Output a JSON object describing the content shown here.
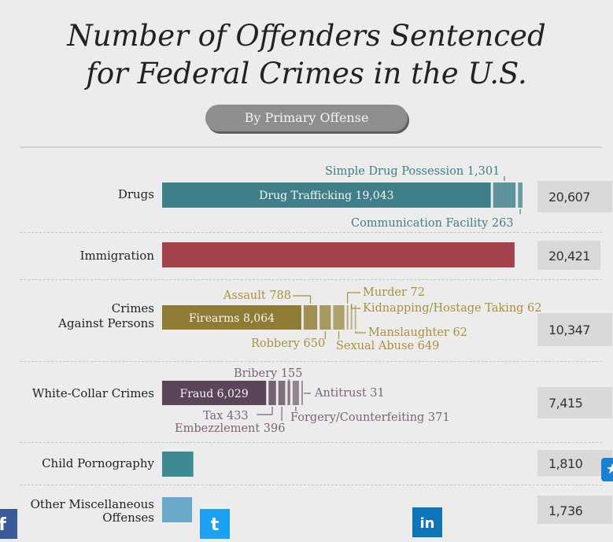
{
  "title_line1": "Number of Offenders Sentenced",
  "title_line2": "for Federal Crimes in the U.S.",
  "subtitle": "By Primary Offense",
  "colors": {
    "drugs": "#3e7f88",
    "immigration": "#a4434b",
    "persons": "#8f7c34",
    "whitecollar": "#5a4559",
    "child": "#3e8a93",
    "other": "#6aa8c8",
    "total_box": "#d9d9d9"
  },
  "chart_data": {
    "type": "bar",
    "title": "Number of Offenders Sentenced for Federal Crimes in the U.S.",
    "subtitle": "By Primary Offense",
    "unit_scale_max": 20607,
    "categories": [
      {
        "label_lines": [
          "Drugs"
        ],
        "total": 20607,
        "total_label": "20,607",
        "segments": [
          {
            "name": "Drug Trafficking",
            "value": 19043,
            "value_label": "19,043"
          },
          {
            "name": "Simple Drug Possession",
            "value": 1301,
            "value_label": "1,301"
          },
          {
            "name": "Communication Facility",
            "value": 263,
            "value_label": "263"
          }
        ]
      },
      {
        "label_lines": [
          "Immigration"
        ],
        "total": 20421,
        "total_label": "20,421",
        "segments": [
          {
            "name": "Immigration",
            "value": 20421,
            "value_label": "20,421"
          }
        ]
      },
      {
        "label_lines": [
          "Crimes",
          "Against Persons"
        ],
        "total": 10347,
        "total_label": "10,347",
        "segments": [
          {
            "name": "Firearms",
            "value": 8064,
            "value_label": "8,064"
          },
          {
            "name": "Assault",
            "value": 788,
            "value_label": "788"
          },
          {
            "name": "Robbery",
            "value": 650,
            "value_label": "650"
          },
          {
            "name": "Sexual Abuse",
            "value": 649,
            "value_label": "649"
          },
          {
            "name": "Murder",
            "value": 72,
            "value_label": "72"
          },
          {
            "name": "Kidnapping/Hostage Taking",
            "value": 62,
            "value_label": "62"
          },
          {
            "name": "Manslaughter",
            "value": 62,
            "value_label": "62"
          }
        ]
      },
      {
        "label_lines": [
          "White-Collar Crimes"
        ],
        "total": 7415,
        "total_label": "7,415",
        "segments": [
          {
            "name": "Fraud",
            "value": 6029,
            "value_label": "6,029"
          },
          {
            "name": "Tax",
            "value": 433,
            "value_label": "433"
          },
          {
            "name": "Embezzlement",
            "value": 396,
            "value_label": "396"
          },
          {
            "name": "Bribery",
            "value": 155,
            "value_label": "155"
          },
          {
            "name": "Forgery/Counterfeiting",
            "value": 371,
            "value_label": "371"
          },
          {
            "name": "Antitrust",
            "value": 31,
            "value_label": "31"
          }
        ]
      },
      {
        "label_lines": [
          "Child Pornography"
        ],
        "total": 1810,
        "total_label": "1,810",
        "segments": [
          {
            "name": "Child Pornography",
            "value": 1810,
            "value_label": "1,810"
          }
        ]
      },
      {
        "label_lines": [
          "Other Miscellaneous",
          "Offenses"
        ],
        "total": 1736,
        "total_label": "1,736",
        "segments": [
          {
            "name": "Other Miscellaneous Offenses",
            "value": 1736,
            "value_label": "1,736"
          }
        ]
      }
    ]
  },
  "social": {
    "facebook": "f",
    "twitter": "t",
    "linkedin": "in",
    "accessibility": "★"
  }
}
